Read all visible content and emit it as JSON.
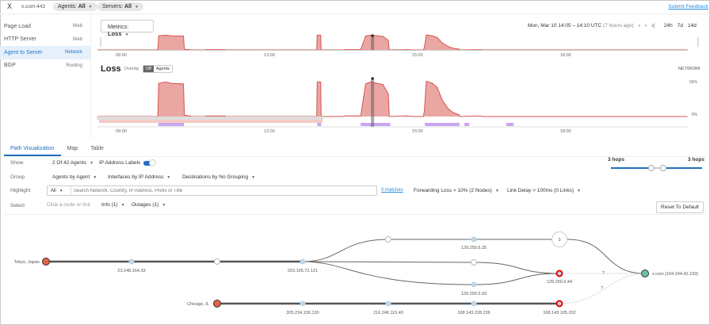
{
  "topbar": {
    "close": "X",
    "host": "x.com:443",
    "agents_label": "Agents:",
    "agents_value": "All",
    "servers_label": "Servers:",
    "servers_value": "All",
    "feedback": "Submit Feedback"
  },
  "sidebar": {
    "items": [
      {
        "label": "Page Load",
        "type": "Web"
      },
      {
        "label": "HTTP Server",
        "type": "Web"
      },
      {
        "label": "Agent to Server",
        "type": "Network",
        "active": true
      },
      {
        "label": "BGP",
        "type": "Routing"
      }
    ]
  },
  "timeline": {
    "metrics_label": "Metrics:",
    "metrics_value": "Loss",
    "range": "Mon, Mar 10 14:05 – 14:10 UTC",
    "ago": "(7 hours ago)",
    "prev": "‹",
    "next": "›",
    "last": "›|",
    "spans": [
      "24h",
      "7d",
      "14d"
    ],
    "ticks": [
      {
        "h": 9,
        "label": "09:00"
      },
      {
        "h": 12,
        "label": "12:00"
      },
      {
        "h": 15,
        "label": "15:00"
      },
      {
        "h": 18,
        "label": "18:00"
      }
    ]
  },
  "loss": {
    "title": "Loss",
    "overlay_label": "Overlay",
    "overlay_off": "Off",
    "overlay_agents": "Agents",
    "category": "NETWORK",
    "ymax_label": "56%",
    "ymin_label": "0%",
    "cursor_hour": 14.09,
    "series": [
      [
        8.52,
        0
      ],
      [
        9.74,
        0
      ],
      [
        9.76,
        50
      ],
      [
        9.9,
        52
      ],
      [
        10.0,
        50
      ],
      [
        10.26,
        49
      ],
      [
        10.28,
        2
      ],
      [
        10.45,
        0
      ],
      [
        10.7,
        0
      ],
      [
        10.72,
        1
      ],
      [
        11.1,
        1
      ],
      [
        11.12,
        0
      ],
      [
        12.96,
        0
      ],
      [
        12.97,
        52
      ],
      [
        13.04,
        52
      ],
      [
        13.05,
        0
      ],
      [
        13.5,
        0
      ],
      [
        13.52,
        1
      ],
      [
        13.85,
        1
      ],
      [
        13.87,
        10
      ],
      [
        13.95,
        49
      ],
      [
        14.05,
        52
      ],
      [
        14.3,
        48
      ],
      [
        14.41,
        34
      ],
      [
        14.43,
        0
      ],
      [
        14.8,
        1
      ],
      [
        14.9,
        0
      ],
      [
        15.12,
        0
      ],
      [
        15.14,
        8
      ],
      [
        15.18,
        53
      ],
      [
        15.3,
        50
      ],
      [
        15.4,
        44
      ],
      [
        15.5,
        25
      ],
      [
        15.62,
        12
      ],
      [
        15.72,
        6
      ],
      [
        15.84,
        3
      ],
      [
        15.86,
        0
      ],
      [
        16.28,
        1
      ],
      [
        16.32,
        0
      ],
      [
        20.47,
        0
      ]
    ],
    "alerts": [
      [
        9.75,
        10.27
      ],
      [
        12.97,
        13.05
      ],
      [
        13.85,
        14.45
      ],
      [
        15.15,
        15.85
      ],
      [
        15.95,
        16.05
      ],
      [
        16.8,
        16.95
      ]
    ]
  },
  "tabs": [
    "Path Visualization",
    "Map",
    "Table"
  ],
  "controls": {
    "show_label": "Show",
    "agents": "2 Of 42 Agents",
    "ip_labels": "IP Address Labels",
    "ip_labels_on": true,
    "group_label": "Group",
    "group1": "Agents by Agent",
    "group2": "Interfaces by IP Address",
    "group3": "Destinations by No Grouping",
    "highlight_label": "Highlight",
    "highlight_filter": "All",
    "search_placeholder": "Search Network, Country, IP Address, Prefix or Title",
    "matches": "0 matches",
    "fwd_loss": "Forwarding Loss > 10%  (2 Nodes)",
    "link_delay": "Link Delay > 100ms  (0 Links)",
    "select_label": "Select",
    "select_hint": "Click a node or link",
    "info": "Info (1)",
    "outages": "Outages (1)",
    "hops_left": "3 hops",
    "hops_right": "3 hops",
    "reset": "Reset To Default"
  },
  "path": {
    "agents": [
      "Tokyo, Japan",
      "Chicago, IL"
    ],
    "destination": "x.com (104.244.42.193)",
    "nodes": [
      "23.248.164.33",
      "203.105.72.121",
      "129.250.6.35",
      "129.250.6.44",
      "129.250.5.93",
      "205.234.130.130",
      "216.246.115.40",
      "168.143.228.236",
      "168.143.105.202"
    ],
    "group_count": "3",
    "unknown": "?"
  },
  "colors": {
    "loss": "#d9534f",
    "loss_fill": "#eaa6a3",
    "alert": "#c9a6f0",
    "accent": "#1f6fbf",
    "agent": "#e0644a",
    "dest": "#6cc3a0",
    "hop": "#bcd6ea"
  }
}
